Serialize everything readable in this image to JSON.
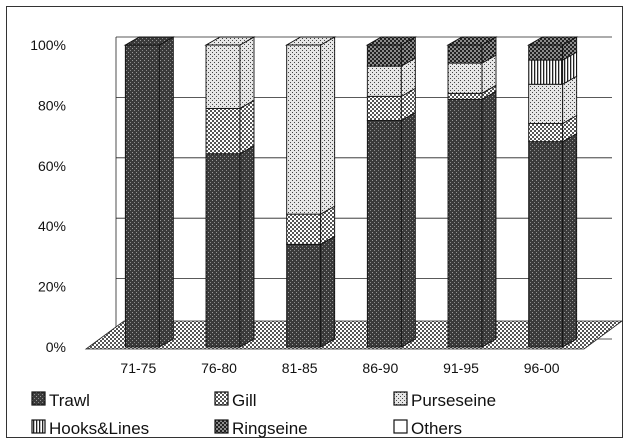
{
  "chart_data": {
    "type": "bar",
    "stacked": true,
    "percent": true,
    "three_d": true,
    "title": "",
    "xlabel": "",
    "ylabel": "",
    "ylim": [
      0,
      100
    ],
    "y_ticks": [
      "0%",
      "20%",
      "40%",
      "60%",
      "80%",
      "100%"
    ],
    "grid": true,
    "categories": [
      "71-75",
      "76-80",
      "81-85",
      "86-90",
      "91-95",
      "96-00"
    ],
    "series": [
      {
        "name": "Trawl",
        "pattern": "dark-dots",
        "values": [
          100,
          64,
          34,
          75,
          82,
          68
        ]
      },
      {
        "name": "Gill",
        "pattern": "checker",
        "values": [
          0,
          15,
          10,
          8,
          2,
          6
        ]
      },
      {
        "name": "Purseseine",
        "pattern": "light-dots",
        "values": [
          0,
          21,
          56,
          10,
          10,
          13
        ]
      },
      {
        "name": "Hooks&Lines",
        "pattern": "vertical-lines",
        "values": [
          0,
          0,
          0,
          0,
          0,
          8
        ]
      },
      {
        "name": "Ringseine",
        "pattern": "dark-checker",
        "values": [
          0,
          0,
          0,
          7,
          6,
          5
        ]
      },
      {
        "name": "Others",
        "pattern": "white",
        "values": [
          0,
          0,
          0,
          0,
          0,
          0
        ]
      }
    ],
    "legend_position": "bottom"
  }
}
